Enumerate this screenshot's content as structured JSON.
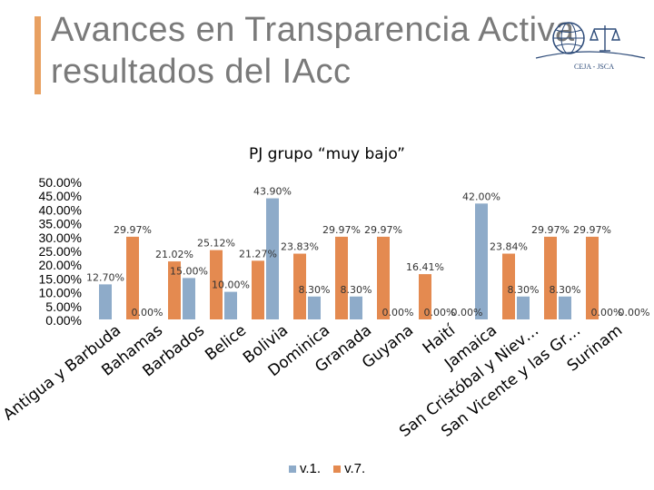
{
  "slide": {
    "title_line1": "Avances en Transparencia Activa",
    "title_line2": "resultados del IAcc",
    "logo_text": "CEJA - JSCA"
  },
  "colors": {
    "series1": "#8eabc9",
    "series2": "#e48a50",
    "title": "#7a7a7a",
    "accent_bar": "#e8a061"
  },
  "chart_data": {
    "type": "bar",
    "title": "PJ grupo “muy bajo”",
    "categories": [
      "Antigua y Barbuda",
      "Bahamas",
      "Barbados",
      "Belice",
      "Bolivia",
      "Dominica",
      "Granada",
      "Guyana",
      "Haití",
      "Jamaica",
      "San Cristóbal y Niev…",
      "San Vicente y las Gr…",
      "Surinam"
    ],
    "series": [
      {
        "name": "v.1.",
        "values": [
          12.7,
          0.0,
          15.0,
          10.0,
          43.9,
          8.3,
          8.3,
          0.0,
          0.0,
          42.0,
          8.3,
          8.3,
          0.0
        ]
      },
      {
        "name": "v.7.",
        "values": [
          29.97,
          21.02,
          25.12,
          21.27,
          23.83,
          29.97,
          29.97,
          16.41,
          0.0,
          23.84,
          29.97,
          29.97,
          0.0
        ]
      }
    ],
    "data_labels": [
      [
        "12.70%",
        "0.00%",
        "15.00%",
        "10.00%",
        "43.90%",
        "8.30%",
        "8.30%",
        "0.00%",
        "0.00%",
        "42.00%",
        "8.30%",
        "8.30%",
        "0.00%"
      ],
      [
        "29.97%",
        "21.02%",
        "25.12%",
        "21.27%",
        "23.83%",
        "29.97%",
        "29.97%",
        "16.41%",
        "0.00%",
        "23.84%",
        "29.97%",
        "29.97%",
        "0.00%"
      ]
    ],
    "yticks": [
      "50.00%",
      "45.00%",
      "40.00%",
      "35.00%",
      "30.00%",
      "25.00%",
      "20.00%",
      "15.00%",
      "10.00%",
      "5.00%",
      "0.00%"
    ],
    "ylim": [
      0,
      50
    ],
    "grid": false,
    "legend": "bottom"
  }
}
